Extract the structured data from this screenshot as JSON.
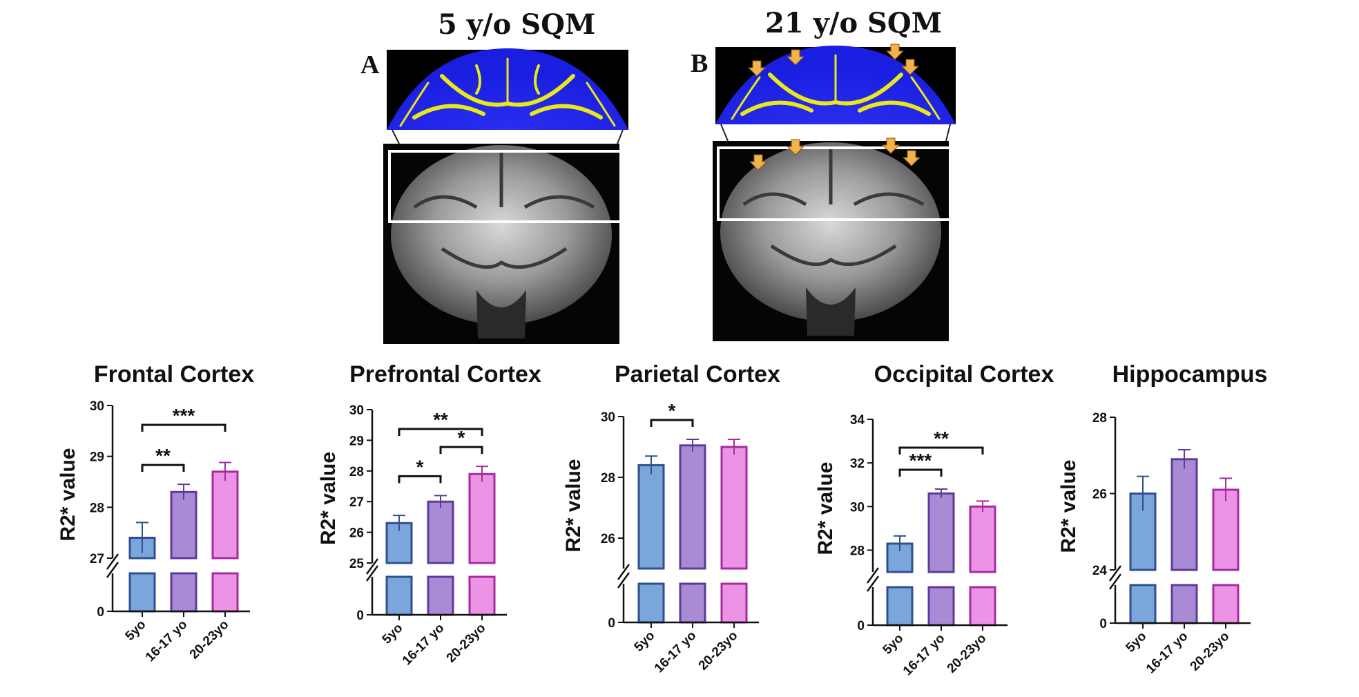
{
  "figure": {
    "panel_a": {
      "letter": "A",
      "title": "5 y/o SQM"
    },
    "panel_b": {
      "letter": "B",
      "title": "21 y/o SQM"
    }
  },
  "colors": {
    "bar_5yo_fill": "#7aa6dc",
    "bar_5yo_edge": "#2f4f8f",
    "bar_16_fill": "#a98ad4",
    "bar_16_edge": "#5e3a9a",
    "bar_20_fill": "#ec93e6",
    "bar_20_edge": "#a72b9f",
    "axis": "#111111",
    "heat_bg": "#1a1ee0",
    "heat_signal": "#e8e81a",
    "arrow": "#f4b24a"
  },
  "chart_data": [
    {
      "type": "bar",
      "title": "Frontal Cortex",
      "ylabel": "R2* value",
      "categories": [
        "5yo",
        "16-17 yo",
        "20-23yo"
      ],
      "values": [
        27.4,
        28.3,
        28.7
      ],
      "errors": [
        0.3,
        0.15,
        0.18
      ],
      "axis_break": true,
      "ylim_upper": [
        27,
        30
      ],
      "ylim_lower": [
        0,
        27
      ],
      "yticks_upper": [
        "27",
        "28",
        "29",
        "30"
      ],
      "yticks_lower": [
        "0"
      ],
      "brackets": [
        {
          "from": 0,
          "to": 1,
          "label": "**"
        },
        {
          "from": 0,
          "to": 2,
          "label": "***"
        }
      ]
    },
    {
      "type": "bar",
      "title": "Prefrontal Cortex",
      "ylabel": "R2* value",
      "categories": [
        "5yo",
        "16-17 yo",
        "20-23yo"
      ],
      "values": [
        26.3,
        27.0,
        27.9
      ],
      "errors": [
        0.25,
        0.2,
        0.25
      ],
      "axis_break": true,
      "ylim_upper": [
        25,
        30
      ],
      "ylim_lower": [
        0,
        25
      ],
      "yticks_upper": [
        "25",
        "26",
        "27",
        "28",
        "29",
        "30"
      ],
      "yticks_lower": [
        "0"
      ],
      "brackets": [
        {
          "from": 0,
          "to": 1,
          "label": "*"
        },
        {
          "from": 1,
          "to": 2,
          "label": "*"
        },
        {
          "from": 0,
          "to": 2,
          "label": "**"
        }
      ]
    },
    {
      "type": "bar",
      "title": "Parietal Cortex",
      "ylabel": "R2* value",
      "categories": [
        "5yo",
        "16-17 yo",
        "20-23yo"
      ],
      "values": [
        28.4,
        29.05,
        29.0
      ],
      "errors": [
        0.3,
        0.2,
        0.25
      ],
      "axis_break": true,
      "ylim_upper": [
        25,
        30
      ],
      "ylim_lower": [
        0,
        25
      ],
      "yticks_upper": [
        "26",
        "28",
        "30"
      ],
      "yticks_lower": [
        "0"
      ],
      "brackets": [
        {
          "from": 0,
          "to": 1,
          "label": "*"
        }
      ]
    },
    {
      "type": "bar",
      "title": "Occipital Cortex",
      "ylabel": "R2* value",
      "categories": [
        "5yo",
        "16-17 yo",
        "20-23yo"
      ],
      "values": [
        28.3,
        30.6,
        30.0
      ],
      "errors": [
        0.35,
        0.2,
        0.25
      ],
      "axis_break": true,
      "ylim_upper": [
        27,
        34
      ],
      "ylim_lower": [
        0,
        27
      ],
      "yticks_upper": [
        "28",
        "30",
        "32",
        "34"
      ],
      "yticks_lower": [
        "0"
      ],
      "brackets": [
        {
          "from": 0,
          "to": 1,
          "label": "***"
        },
        {
          "from": 0,
          "to": 2,
          "label": "**"
        }
      ]
    },
    {
      "type": "bar",
      "title": "Hippocampus",
      "ylabel": "R2* value",
      "categories": [
        "5yo",
        "16-17 yo",
        "20-23yo"
      ],
      "values": [
        26.0,
        26.9,
        26.1
      ],
      "errors": [
        0.45,
        0.25,
        0.3
      ],
      "axis_break": true,
      "ylim_upper": [
        24,
        28
      ],
      "ylim_lower": [
        0,
        24
      ],
      "yticks_upper": [
        "24",
        "26",
        "28"
      ],
      "yticks_lower": [
        "0"
      ],
      "brackets": []
    }
  ]
}
